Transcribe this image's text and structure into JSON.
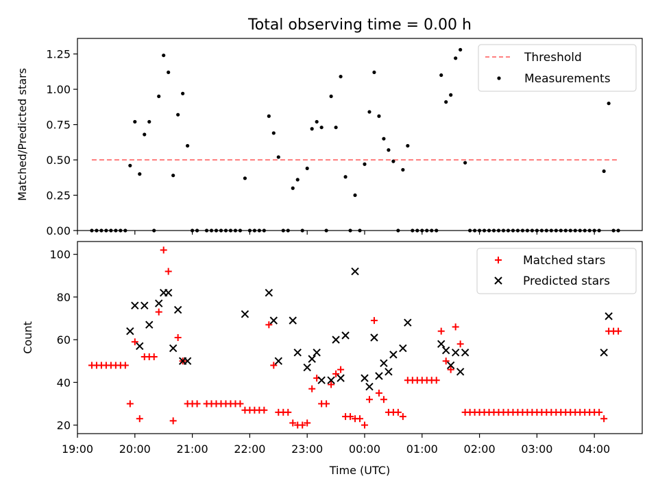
{
  "title": "Total observing time = 0.00 h",
  "colors": {
    "threshold": "#ff7f7f",
    "measurements": "#000000",
    "matched": "#ff0000",
    "predicted": "#000000"
  },
  "chart_data": [
    {
      "type": "scatter",
      "ylabel": "Matched/Predicted stars",
      "ylim": [
        0,
        1.36
      ],
      "yticks": [
        "0.00",
        "0.25",
        "0.50",
        "0.75",
        "1.00",
        "1.25"
      ],
      "xlim": [
        "19:00",
        "04:50"
      ],
      "legend": {
        "placement": "top-right",
        "entries": [
          "Threshold",
          "Measurements"
        ]
      },
      "threshold": {
        "name": "Threshold",
        "value": 0.5,
        "x_start": "19:15",
        "x_end": "04:25"
      },
      "series": [
        {
          "name": "Measurements",
          "points": [
            [
              "19:15",
              0
            ],
            [
              "19:20",
              0
            ],
            [
              "19:25",
              0
            ],
            [
              "19:30",
              0
            ],
            [
              "19:35",
              0
            ],
            [
              "19:40",
              0
            ],
            [
              "19:45",
              0
            ],
            [
              "19:50",
              0
            ],
            [
              "19:55",
              0.46
            ],
            [
              "20:00",
              0.77
            ],
            [
              "20:05",
              0.4
            ],
            [
              "20:10",
              0.68
            ],
            [
              "20:15",
              0.77
            ],
            [
              "20:20",
              0
            ],
            [
              "20:25",
              0.95
            ],
            [
              "20:30",
              1.24
            ],
            [
              "20:35",
              1.12
            ],
            [
              "20:40",
              0.39
            ],
            [
              "20:45",
              0.82
            ],
            [
              "20:50",
              0.97
            ],
            [
              "20:55",
              0.6
            ],
            [
              "21:00",
              0
            ],
            [
              "21:05",
              0
            ],
            [
              "21:15",
              0
            ],
            [
              "21:20",
              0
            ],
            [
              "21:25",
              0
            ],
            [
              "21:30",
              0
            ],
            [
              "21:35",
              0
            ],
            [
              "21:40",
              0
            ],
            [
              "21:45",
              0
            ],
            [
              "21:50",
              0
            ],
            [
              "21:55",
              0.37
            ],
            [
              "22:00",
              0
            ],
            [
              "22:05",
              0
            ],
            [
              "22:10",
              0
            ],
            [
              "22:15",
              0
            ],
            [
              "22:20",
              0.81
            ],
            [
              "22:25",
              0.69
            ],
            [
              "22:30",
              0.52
            ],
            [
              "22:35",
              0
            ],
            [
              "22:40",
              0
            ],
            [
              "22:45",
              0.3
            ],
            [
              "22:50",
              0.36
            ],
            [
              "22:55",
              0
            ],
            [
              "23:00",
              0.44
            ],
            [
              "23:05",
              0.72
            ],
            [
              "23:10",
              0.77
            ],
            [
              "23:15",
              0.73
            ],
            [
              "23:20",
              0
            ],
            [
              "23:25",
              0.95
            ],
            [
              "23:30",
              0.73
            ],
            [
              "23:35",
              1.09
            ],
            [
              "23:40",
              0.38
            ],
            [
              "23:45",
              0
            ],
            [
              "23:50",
              0.25
            ],
            [
              "23:55",
              0
            ],
            [
              "00:00",
              0.47
            ],
            [
              "00:05",
              0.84
            ],
            [
              "00:10",
              1.12
            ],
            [
              "00:15",
              0.81
            ],
            [
              "00:20",
              0.65
            ],
            [
              "00:25",
              0.57
            ],
            [
              "00:30",
              0.49
            ],
            [
              "00:35",
              0
            ],
            [
              "00:40",
              0.43
            ],
            [
              "00:45",
              0.6
            ],
            [
              "00:50",
              0
            ],
            [
              "00:55",
              0
            ],
            [
              "01:00",
              0
            ],
            [
              "01:05",
              0
            ],
            [
              "01:10",
              0
            ],
            [
              "01:15",
              0
            ],
            [
              "01:20",
              1.1
            ],
            [
              "01:25",
              0.91
            ],
            [
              "01:30",
              0.96
            ],
            [
              "01:35",
              1.22
            ],
            [
              "01:40",
              1.28
            ],
            [
              "01:45",
              0.48
            ],
            [
              "01:50",
              0
            ],
            [
              "01:55",
              0
            ],
            [
              "02:00",
              0
            ],
            [
              "02:05",
              0
            ],
            [
              "02:10",
              0
            ],
            [
              "02:15",
              0
            ],
            [
              "02:20",
              0
            ],
            [
              "02:25",
              0
            ],
            [
              "02:30",
              0
            ],
            [
              "02:35",
              0
            ],
            [
              "02:40",
              0
            ],
            [
              "02:45",
              0
            ],
            [
              "02:50",
              0
            ],
            [
              "02:55",
              0
            ],
            [
              "03:00",
              0
            ],
            [
              "03:05",
              0
            ],
            [
              "03:10",
              0
            ],
            [
              "03:15",
              0
            ],
            [
              "03:20",
              0
            ],
            [
              "03:25",
              0
            ],
            [
              "03:30",
              0
            ],
            [
              "03:35",
              0
            ],
            [
              "03:40",
              0
            ],
            [
              "03:45",
              0
            ],
            [
              "03:50",
              0
            ],
            [
              "03:55",
              0
            ],
            [
              "04:00",
              0
            ],
            [
              "04:05",
              0
            ],
            [
              "04:10",
              0.42
            ],
            [
              "04:15",
              0.9
            ],
            [
              "04:20",
              0
            ],
            [
              "04:25",
              0
            ]
          ]
        }
      ]
    },
    {
      "type": "scatter",
      "xlabel": "Time (UTC)",
      "ylabel": "Count",
      "ylim": [
        16,
        106
      ],
      "yticks": [
        "20",
        "40",
        "60",
        "80",
        "100"
      ],
      "xlim": [
        "19:00",
        "04:50"
      ],
      "xticks": [
        "19:00",
        "20:00",
        "21:00",
        "22:00",
        "23:00",
        "00:00",
        "01:00",
        "02:00",
        "03:00",
        "04:00"
      ],
      "legend": {
        "placement": "top-right",
        "entries": [
          "Matched stars",
          "Predicted stars"
        ]
      },
      "series": [
        {
          "name": "Matched stars",
          "points": [
            [
              "19:15",
              48
            ],
            [
              "19:20",
              48
            ],
            [
              "19:25",
              48
            ],
            [
              "19:30",
              48
            ],
            [
              "19:35",
              48
            ],
            [
              "19:40",
              48
            ],
            [
              "19:45",
              48
            ],
            [
              "19:50",
              48
            ],
            [
              "19:55",
              30
            ],
            [
              "20:00",
              59
            ],
            [
              "20:05",
              23
            ],
            [
              "20:10",
              52
            ],
            [
              "20:15",
              52
            ],
            [
              "20:20",
              52
            ],
            [
              "20:25",
              73
            ],
            [
              "20:30",
              102
            ],
            [
              "20:35",
              92
            ],
            [
              "20:40",
              22
            ],
            [
              "20:45",
              61
            ],
            [
              "20:50",
              50
            ],
            [
              "20:55",
              30
            ],
            [
              "21:00",
              30
            ],
            [
              "21:05",
              30
            ],
            [
              "21:15",
              30
            ],
            [
              "21:20",
              30
            ],
            [
              "21:25",
              30
            ],
            [
              "21:30",
              30
            ],
            [
              "21:35",
              30
            ],
            [
              "21:40",
              30
            ],
            [
              "21:45",
              30
            ],
            [
              "21:50",
              30
            ],
            [
              "21:55",
              27
            ],
            [
              "22:00",
              27
            ],
            [
              "22:05",
              27
            ],
            [
              "22:10",
              27
            ],
            [
              "22:15",
              27
            ],
            [
              "22:20",
              67
            ],
            [
              "22:25",
              48
            ],
            [
              "22:30",
              26
            ],
            [
              "22:35",
              26
            ],
            [
              "22:40",
              26
            ],
            [
              "22:45",
              21
            ],
            [
              "22:50",
              20
            ],
            [
              "22:55",
              20
            ],
            [
              "23:00",
              21
            ],
            [
              "23:05",
              37
            ],
            [
              "23:10",
              42
            ],
            [
              "23:15",
              30
            ],
            [
              "23:20",
              30
            ],
            [
              "23:25",
              39
            ],
            [
              "23:30",
              44
            ],
            [
              "23:35",
              46
            ],
            [
              "23:40",
              24
            ],
            [
              "23:45",
              24
            ],
            [
              "23:50",
              23
            ],
            [
              "23:55",
              23
            ],
            [
              "00:00",
              20
            ],
            [
              "00:05",
              32
            ],
            [
              "00:10",
              69
            ],
            [
              "00:15",
              35
            ],
            [
              "00:20",
              32
            ],
            [
              "00:25",
              26
            ],
            [
              "00:30",
              26
            ],
            [
              "00:35",
              26
            ],
            [
              "00:40",
              24
            ],
            [
              "00:45",
              41
            ],
            [
              "00:50",
              41
            ],
            [
              "00:55",
              41
            ],
            [
              "01:00",
              41
            ],
            [
              "01:05",
              41
            ],
            [
              "01:10",
              41
            ],
            [
              "01:15",
              41
            ],
            [
              "01:20",
              64
            ],
            [
              "01:25",
              50
            ],
            [
              "01:30",
              46
            ],
            [
              "01:35",
              66
            ],
            [
              "01:40",
              58
            ],
            [
              "01:45",
              26
            ],
            [
              "01:50",
              26
            ],
            [
              "01:55",
              26
            ],
            [
              "02:00",
              26
            ],
            [
              "02:05",
              26
            ],
            [
              "02:10",
              26
            ],
            [
              "02:15",
              26
            ],
            [
              "02:20",
              26
            ],
            [
              "02:25",
              26
            ],
            [
              "02:30",
              26
            ],
            [
              "02:35",
              26
            ],
            [
              "02:40",
              26
            ],
            [
              "02:45",
              26
            ],
            [
              "02:50",
              26
            ],
            [
              "02:55",
              26
            ],
            [
              "03:00",
              26
            ],
            [
              "03:05",
              26
            ],
            [
              "03:10",
              26
            ],
            [
              "03:15",
              26
            ],
            [
              "03:20",
              26
            ],
            [
              "03:25",
              26
            ],
            [
              "03:30",
              26
            ],
            [
              "03:35",
              26
            ],
            [
              "03:40",
              26
            ],
            [
              "03:45",
              26
            ],
            [
              "03:50",
              26
            ],
            [
              "03:55",
              26
            ],
            [
              "04:00",
              26
            ],
            [
              "04:05",
              26
            ],
            [
              "04:10",
              23
            ],
            [
              "04:15",
              64
            ],
            [
              "04:20",
              64
            ],
            [
              "04:25",
              64
            ]
          ]
        },
        {
          "name": "Predicted stars",
          "points": [
            [
              "19:55",
              64
            ],
            [
              "20:00",
              76
            ],
            [
              "20:05",
              57
            ],
            [
              "20:10",
              76
            ],
            [
              "20:15",
              67
            ],
            [
              "20:25",
              77
            ],
            [
              "20:30",
              82
            ],
            [
              "20:35",
              82
            ],
            [
              "20:40",
              56
            ],
            [
              "20:45",
              74
            ],
            [
              "20:50",
              50
            ],
            [
              "20:55",
              50
            ],
            [
              "21:55",
              72
            ],
            [
              "22:20",
              82
            ],
            [
              "22:25",
              69
            ],
            [
              "22:30",
              50
            ],
            [
              "22:45",
              69
            ],
            [
              "22:50",
              54
            ],
            [
              "23:00",
              47
            ],
            [
              "23:05",
              51
            ],
            [
              "23:10",
              54
            ],
            [
              "23:15",
              41
            ],
            [
              "23:25",
              41
            ],
            [
              "23:30",
              60
            ],
            [
              "23:35",
              42
            ],
            [
              "23:40",
              62
            ],
            [
              "23:50",
              92
            ],
            [
              "00:00",
              42
            ],
            [
              "00:05",
              38
            ],
            [
              "00:10",
              61
            ],
            [
              "00:15",
              43
            ],
            [
              "00:20",
              49
            ],
            [
              "00:25",
              45
            ],
            [
              "00:30",
              53
            ],
            [
              "00:40",
              56
            ],
            [
              "00:45",
              68
            ],
            [
              "01:20",
              58
            ],
            [
              "01:25",
              55
            ],
            [
              "01:30",
              48
            ],
            [
              "01:35",
              54
            ],
            [
              "01:40",
              45
            ],
            [
              "01:45",
              54
            ],
            [
              "04:10",
              54
            ],
            [
              "04:15",
              71
            ]
          ]
        }
      ]
    }
  ]
}
